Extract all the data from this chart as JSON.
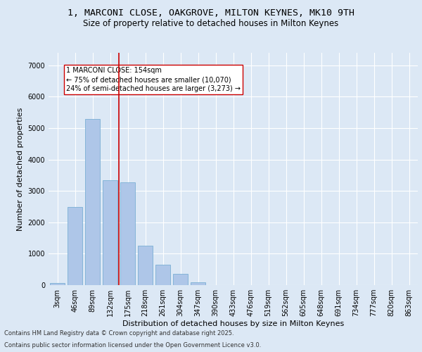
{
  "title_line1": "1, MARCONI CLOSE, OAKGROVE, MILTON KEYNES, MK10 9TH",
  "title_line2": "Size of property relative to detached houses in Milton Keynes",
  "xlabel": "Distribution of detached houses by size in Milton Keynes",
  "ylabel": "Number of detached properties",
  "categories": [
    "3sqm",
    "46sqm",
    "89sqm",
    "132sqm",
    "175sqm",
    "218sqm",
    "261sqm",
    "304sqm",
    "347sqm",
    "390sqm",
    "433sqm",
    "476sqm",
    "519sqm",
    "562sqm",
    "605sqm",
    "648sqm",
    "691sqm",
    "734sqm",
    "777sqm",
    "820sqm",
    "863sqm"
  ],
  "values": [
    60,
    2500,
    5300,
    3350,
    3280,
    1250,
    650,
    350,
    80,
    0,
    0,
    0,
    0,
    0,
    0,
    0,
    0,
    0,
    0,
    0,
    0
  ],
  "bar_color": "#aec6e8",
  "bar_edge_color": "#7aafd4",
  "vline_color": "#cc0000",
  "vline_pos": 3.5,
  "annotation_text": "1 MARCONI CLOSE: 154sqm\n← 75% of detached houses are smaller (10,070)\n24% of semi-detached houses are larger (3,273) →",
  "annotation_box_color": "#ffffff",
  "annotation_box_edge": "#cc0000",
  "ylim": [
    0,
    7400
  ],
  "yticks": [
    0,
    1000,
    2000,
    3000,
    4000,
    5000,
    6000,
    7000
  ],
  "bg_color": "#dce8f5",
  "plot_bg_color": "#dce8f5",
  "footer_line1": "Contains HM Land Registry data © Crown copyright and database right 2025.",
  "footer_line2": "Contains public sector information licensed under the Open Government Licence v3.0.",
  "title_fontsize": 9.5,
  "subtitle_fontsize": 8.5,
  "axis_label_fontsize": 8,
  "tick_fontsize": 7,
  "annotation_fontsize": 7,
  "footer_fontsize": 6
}
